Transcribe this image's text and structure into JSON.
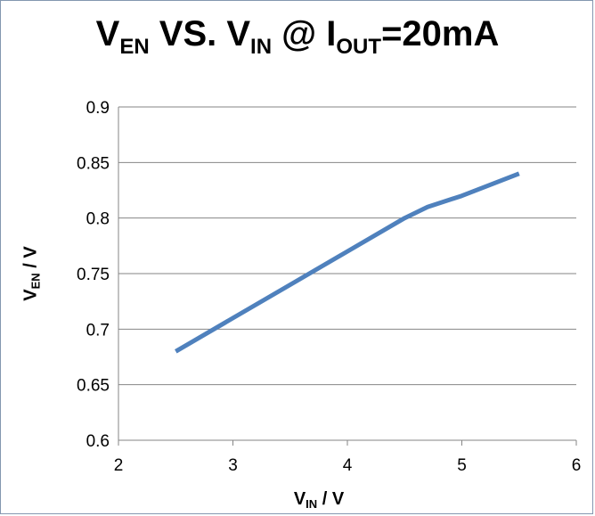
{
  "chart_data": {
    "type": "line",
    "title": {
      "main1": "V",
      "sub1": "EN",
      "mid": " VS. V",
      "sub2": "IN",
      "mid2": " @ I",
      "sub3": "OUT",
      "tail": "=20mA"
    },
    "xlabel": {
      "main": "V",
      "sub": "IN",
      "tail": " / V"
    },
    "ylabel": {
      "main": "V",
      "sub": "EN",
      "tail": " / V"
    },
    "xlim": [
      2,
      6
    ],
    "ylim": [
      0.6,
      0.9
    ],
    "x_ticks": [
      "2",
      "3",
      "4",
      "5",
      "6"
    ],
    "y_ticks": [
      "0.6",
      "0.65",
      "0.7",
      "0.75",
      "0.8",
      "0.85",
      "0.9"
    ],
    "grid": "horizontal",
    "legend": "none",
    "series": [
      {
        "color": "#4f81bd",
        "x": [
          2.5,
          3.0,
          3.5,
          4.0,
          4.5,
          4.7,
          5.0,
          5.5
        ],
        "y": [
          0.68,
          0.71,
          0.74,
          0.77,
          0.8,
          0.81,
          0.82,
          0.84
        ]
      }
    ]
  }
}
